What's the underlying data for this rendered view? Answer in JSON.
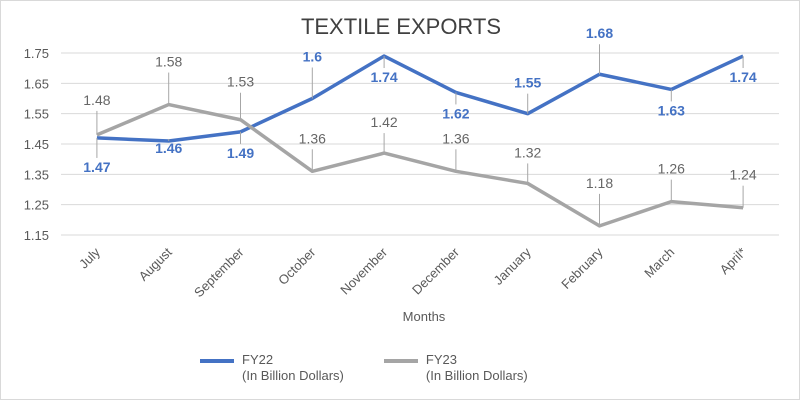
{
  "chart_data": {
    "type": "line",
    "title": "TEXTILE EXPORTS",
    "xlabel": "Months",
    "ylabel": "",
    "categories": [
      "July",
      "August",
      "September",
      "October",
      "November",
      "December",
      "January",
      "February",
      "March",
      "April*"
    ],
    "ylim": [
      1.15,
      1.75
    ],
    "yticks": [
      "1.15",
      "1.25",
      "1.35",
      "1.45",
      "1.55",
      "1.65",
      "1.75"
    ],
    "grid": true,
    "legend_position": "bottom",
    "series": [
      {
        "name": "FY22",
        "legend_line2": "(In Billion Dollars)",
        "color": "#4472C4",
        "values": [
          1.47,
          1.46,
          1.49,
          1.6,
          1.74,
          1.62,
          1.55,
          1.68,
          1.63,
          1.74
        ],
        "labels": [
          "1.47",
          "1.46",
          "1.49",
          "1.6",
          "1.74",
          "1.62",
          "1.55",
          "1.68",
          "1.63",
          "1.74"
        ]
      },
      {
        "name": "FY23",
        "legend_line2": "(In Billion Dollars)",
        "color": "#A5A5A5",
        "values": [
          1.48,
          1.58,
          1.53,
          1.36,
          1.42,
          1.36,
          1.32,
          1.18,
          1.26,
          1.24
        ],
        "labels": [
          "1.48",
          "1.58",
          "1.53",
          "1.36",
          "1.42",
          "1.36",
          "1.32",
          "1.18",
          "1.26",
          "1.24"
        ]
      }
    ]
  }
}
